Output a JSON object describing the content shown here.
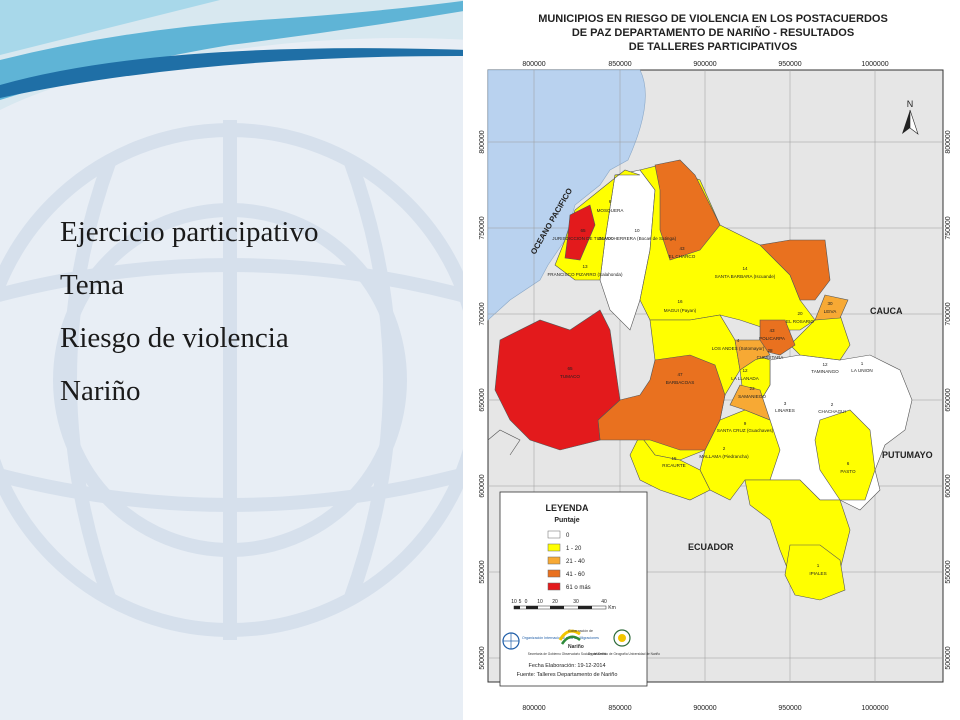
{
  "slide": {
    "bullets": [
      "Ejercicio participativo",
      "Tema",
      "Riesgo de violencia",
      "Nariño"
    ]
  },
  "map": {
    "title_lines": [
      "MUNICIPIOS EN RIESGO DE VIOLENCIA EN LOS POSTACUERDOS",
      "DE PAZ DEPARTAMENTO DE NARIÑO - RESULTADOS",
      "DE TALLERES PARTICIPATIVOS"
    ],
    "x_ticks": [
      "800000",
      "850000",
      "900000",
      "950000",
      "1000000"
    ],
    "y_ticks": [
      "800000",
      "750000",
      "700000",
      "650000",
      "600000",
      "550000",
      "500000"
    ],
    "north": "N",
    "regions": {
      "ocean": "OCEANO PACIFICO",
      "cauca": "CAUCA",
      "putumayo": "PUTUMAYO",
      "ecuador": "ECUADOR"
    },
    "colors": {
      "ocean": "#b9d2ef",
      "land_bg": "#e8e8e8",
      "class_0": "#ffffff",
      "class_1_20": "#ffff00",
      "class_21_40": "#f7a934",
      "class_41_60": "#e9711f",
      "class_61_plus": "#e31a1c"
    },
    "municipalities": [
      {
        "name": "MOSQUERA",
        "score": "6"
      },
      {
        "name": "JURISDICCION DE TUMACO",
        "score": "65"
      },
      {
        "name": "OLAYA HERRERA (Bocas de Satinga)",
        "score": "10"
      },
      {
        "name": "EL CHARCO",
        "score": "43"
      },
      {
        "name": "SANTA BARBARA (Iscuande)",
        "score": "14"
      },
      {
        "name": "FRANCISCO PIZARRO (Salahonda)",
        "score": "13"
      },
      {
        "name": "MAGUI (Payan)",
        "score": "16"
      },
      {
        "name": "EL ROSARIO",
        "score": "20"
      },
      {
        "name": "LEIVA",
        "score": "30"
      },
      {
        "name": "POLICARPA",
        "score": "43"
      },
      {
        "name": "CUMBITARA",
        "score": "28"
      },
      {
        "name": "LOS ANDES (Sotomayor)",
        "score": "4"
      },
      {
        "name": "TUMACO",
        "score": "65"
      },
      {
        "name": "BARBACOAS",
        "score": "47"
      },
      {
        "name": "LA LLANADA",
        "score": "12"
      },
      {
        "name": "SAMANIEGO",
        "score": "23"
      },
      {
        "name": "TAMINANGO",
        "score": "12"
      },
      {
        "name": "LA UNION",
        "score": "1"
      },
      {
        "name": "LINARES",
        "score": "3"
      },
      {
        "name": "CHACHAGUI",
        "score": "2"
      },
      {
        "name": "SANTA CRUZ (Guachaves)",
        "score": "9"
      },
      {
        "name": "MALLAMA (Piedrancha)",
        "score": "2"
      },
      {
        "name": "RICAURTE",
        "score": "15"
      },
      {
        "name": "PASTO",
        "score": "6"
      },
      {
        "name": "IPIALES",
        "score": "1"
      }
    ],
    "legend": {
      "title": "LEYENDA",
      "subtitle": "Puntaje",
      "items": [
        "0",
        "1 - 20",
        "21 - 40",
        "41 - 60",
        "61 o más"
      ]
    },
    "scale": {
      "ticks": [
        "10",
        "5",
        "0",
        "10",
        "20",
        "30",
        "40"
      ],
      "unit": "Km"
    },
    "logos": {
      "oim": "Organización Internacional para las Migraciones",
      "gob_line1": "Gobernación de",
      "gob_line2": "Nariño",
      "gob_sub": "Secretaría de Gobierno Observatorio Social y del Delito",
      "udenar": "Departamento de Geografía Universidad de Nariño"
    },
    "footer": {
      "date": "Fecha Elaboración: 19-12-2014",
      "source": "Fuente: Talleres Departamento de Nariño"
    }
  }
}
